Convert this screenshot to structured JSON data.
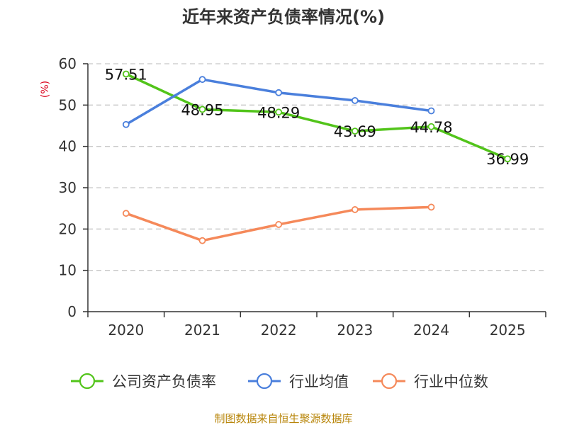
{
  "chart_data": {
    "type": "line",
    "title": "近年来资产负债率情况(%)",
    "ylabel": "(%)",
    "xlabel": "",
    "categories": [
      "2020",
      "2021",
      "2022",
      "2023",
      "2024",
      "2025"
    ],
    "ylim": [
      0,
      60
    ],
    "yticks": [
      0,
      10,
      20,
      30,
      40,
      50,
      60
    ],
    "grid": true,
    "legend_position": "bottom",
    "series": [
      {
        "name": "公司资产负债率",
        "color": "#52c41a",
        "values": [
          57.51,
          48.95,
          48.29,
          43.69,
          44.78,
          36.99
        ],
        "labels": [
          "57.51",
          "48.95",
          "48.29",
          "43.69",
          "44.78",
          "36.99"
        ]
      },
      {
        "name": "行业均值",
        "color": "#4a7fdc",
        "values": [
          45.3,
          56.2,
          53.0,
          51.1,
          48.6,
          null
        ]
      },
      {
        "name": "行业中位数",
        "color": "#f5895a",
        "values": [
          23.8,
          17.2,
          21.1,
          24.7,
          25.3,
          null
        ]
      }
    ],
    "source": "制图数据来自恒生聚源数据库"
  }
}
